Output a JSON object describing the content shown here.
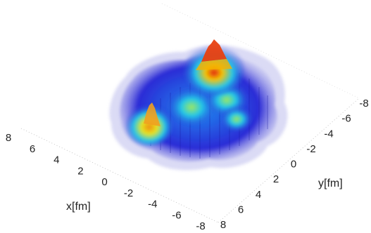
{
  "chart_data": {
    "type": "surface",
    "title": "",
    "xlabel": "x[fm]",
    "ylabel": "y[fm]",
    "zlabel": "",
    "x_ticks": [
      "8",
      "6",
      "4",
      "2",
      "0",
      "-2",
      "-4",
      "-6",
      "-8"
    ],
    "y_ticks": [
      "-8",
      "-6",
      "-4",
      "-2",
      "0",
      "2",
      "4",
      "6",
      "8"
    ],
    "xlim": [
      -8,
      8
    ],
    "ylim": [
      -8,
      8
    ],
    "colormap": "jet",
    "colors": {
      "low": "#2b2bd6",
      "mid": "#22c7e8",
      "high": "#f5c400",
      "peak": "#e02010",
      "halo": "#c8c8f0"
    },
    "peaks": [
      {
        "x": -1,
        "y": -5,
        "height": 1.0
      },
      {
        "x": 3,
        "y": 2,
        "height": 0.78
      },
      {
        "x": -1,
        "y": -3,
        "height": 0.62
      },
      {
        "x": 0,
        "y": 0,
        "height": 0.55
      },
      {
        "x": 1,
        "y": -1,
        "height": 0.5
      }
    ]
  }
}
